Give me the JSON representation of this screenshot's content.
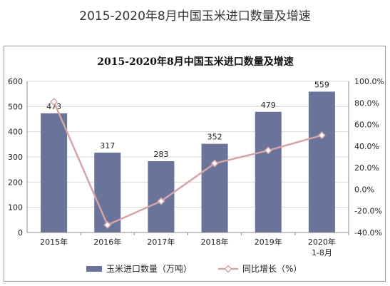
{
  "page_title": "2015-2020年8月中国玉米进口数量及增速",
  "chart_data": {
    "type": "bar",
    "title": "2015-2020年8月中国玉米进口数量及增速",
    "categories": [
      [
        "2015年"
      ],
      [
        "2016年"
      ],
      [
        "2017年"
      ],
      [
        "2018年"
      ],
      [
        "2019年"
      ],
      [
        "2020年",
        "1-8月"
      ]
    ],
    "series": [
      {
        "name": "玉米进口数量（万吨）",
        "type": "bar",
        "axis": "left",
        "color": "#6a7399",
        "values": [
          473,
          317,
          283,
          352,
          479,
          559
        ],
        "labels": [
          "473",
          "317",
          "283",
          "352",
          "479",
          "559"
        ]
      },
      {
        "name": "同比增长（%）",
        "type": "line",
        "axis": "right",
        "color": "#d4a5a7",
        "values": [
          81.0,
          -33.0,
          -11.0,
          24.0,
          36.0,
          50.0
        ]
      }
    ],
    "y_left": {
      "min": 0,
      "max": 600,
      "ticks": [
        "0",
        "100",
        "200",
        "300",
        "400",
        "500",
        "600"
      ]
    },
    "y_right": {
      "min": -40,
      "max": 100,
      "ticks": [
        "-40.0%",
        "-20.0%",
        "0.0%",
        "20.0%",
        "40.0%",
        "60.0%",
        "80.0%",
        "100.0%"
      ]
    },
    "grid": true,
    "legend": "bottom"
  }
}
